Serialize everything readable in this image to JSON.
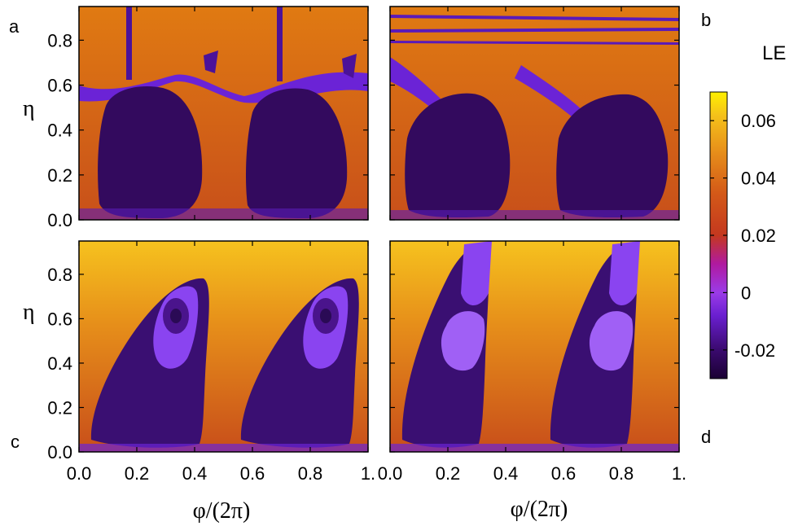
{
  "chart_data": {
    "type": "heatmap",
    "panels": [
      {
        "label": "a",
        "x_ticks": [],
        "y_ticks": [
          "0.0",
          "0.2",
          "0.4",
          "0.6",
          "0.8"
        ],
        "ylabel": "η"
      },
      {
        "label": "b",
        "x_ticks": [],
        "y_ticks": [],
        "ylabel": ""
      },
      {
        "label": "c",
        "x_ticks": [
          "0.0",
          "0.2",
          "0.4",
          "0.6",
          "0.8",
          "1."
        ],
        "y_ticks": [
          "0.0",
          "0.2",
          "0.4",
          "0.6",
          "0.8"
        ],
        "ylabel": "η",
        "xlabel": "φ/(2π)"
      },
      {
        "label": "d",
        "x_ticks": [
          "0.0",
          "0.2",
          "0.4",
          "0.6",
          "0.8",
          "1."
        ],
        "y_ticks": [],
        "ylabel": "",
        "xlabel": "φ/(2π)"
      }
    ],
    "xlim": [
      0,
      1
    ],
    "ylim": [
      0,
      0.95
    ],
    "colorbar": {
      "title": "LE",
      "ticks": [
        "0.06",
        "0.04",
        "0.02",
        "0",
        "-0.02"
      ],
      "tick_values": [
        0.06,
        0.04,
        0.02,
        0,
        -0.02
      ],
      "range": [
        -0.03,
        0.07
      ],
      "colors": [
        "#1a0033",
        "#4b0d8a",
        "#8a2be2",
        "#b01aa0",
        "#c4381f",
        "#d4661a",
        "#e89a10",
        "#ffe800"
      ]
    }
  }
}
